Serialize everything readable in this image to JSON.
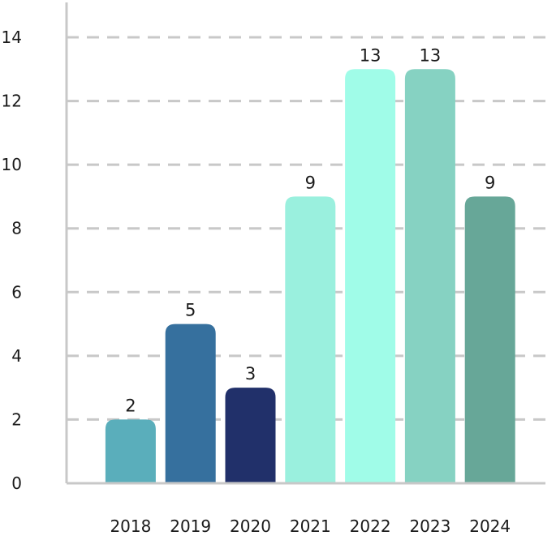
{
  "chart_data": {
    "type": "bar",
    "title": "",
    "xlabel": "",
    "ylabel": "",
    "categories": [
      "2018",
      "2019",
      "2020",
      "2021",
      "2022",
      "2023",
      "2024"
    ],
    "values": [
      2,
      5,
      3,
      9,
      13,
      13,
      9
    ],
    "data_labels": [
      "2",
      "5",
      "3",
      "9",
      "13",
      "13",
      "9"
    ],
    "colors": [
      "#5aaebb",
      "#36709e",
      "#21306a",
      "#9af0de",
      "#a0fce8",
      "#86d2c2",
      "#67a798"
    ],
    "ylim": [
      0,
      14
    ],
    "yticks": [
      0,
      2,
      4,
      6,
      8,
      10,
      12,
      14
    ],
    "ytick_labels": [
      "0",
      "2",
      "4",
      "6",
      "8",
      "10",
      "12",
      "14"
    ],
    "grid": true,
    "grid_style": "dashed",
    "grid_color": "#c8c8c8",
    "axis_color": "#c8c8c8",
    "legend": "none"
  }
}
